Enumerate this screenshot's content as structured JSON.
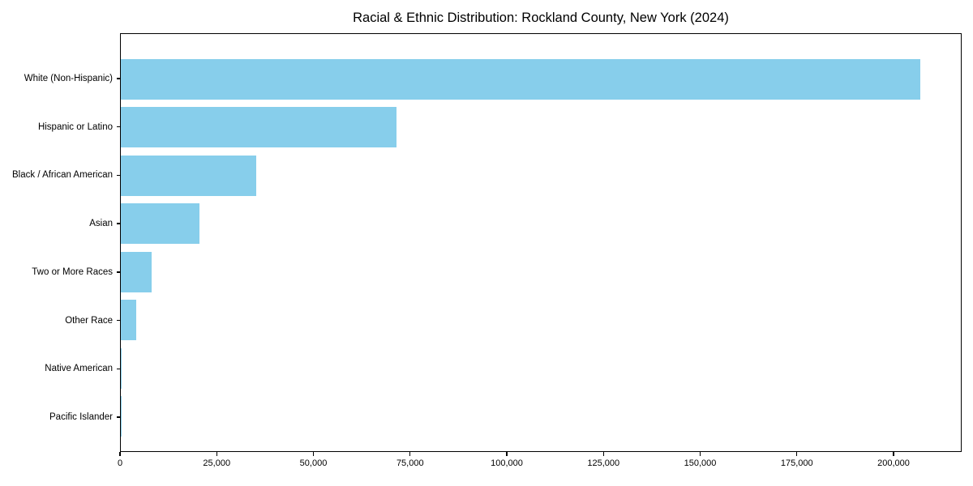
{
  "chart_data": {
    "type": "bar",
    "orientation": "horizontal",
    "title": "Racial & Ethnic Distribution: Rockland County, New York (2024)",
    "xlabel": "",
    "ylabel": "",
    "categories": [
      "White (Non-Hispanic)",
      "Hispanic or Latino",
      "Black / African American",
      "Asian",
      "Two or More Races",
      "Other Race",
      "Native American",
      "Pacific Islander"
    ],
    "values": [
      207000,
      71500,
      35000,
      20400,
      8000,
      4000,
      200,
      100
    ],
    "xlim": [
      0,
      217600
    ],
    "x_ticks": [
      0,
      25000,
      50000,
      75000,
      100000,
      125000,
      150000,
      175000,
      200000
    ],
    "x_tick_labels": [
      "0",
      "25,000",
      "50,000",
      "75,000",
      "100,000",
      "125,000",
      "150,000",
      "175,000",
      "200,000"
    ],
    "bar_color": "#87CEEB",
    "grid": false,
    "legend": null,
    "background_color": "#ffffff",
    "spine_color": "#000000"
  }
}
